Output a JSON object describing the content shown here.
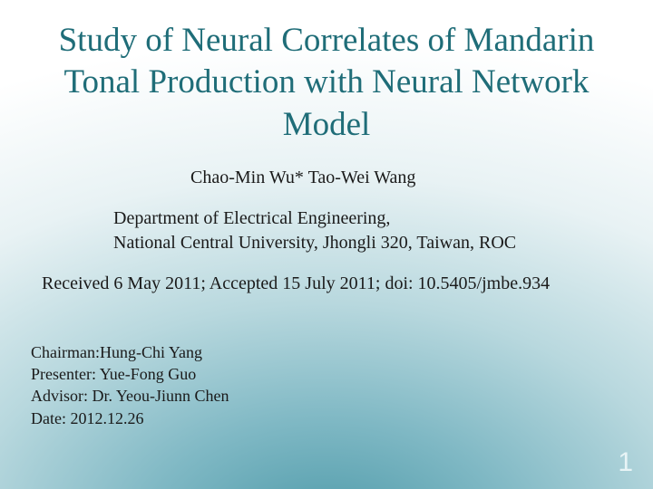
{
  "slide": {
    "background": {
      "gradient_center_color": "#4c99a8",
      "gradient_outer_color": "#ffffff"
    },
    "title": {
      "text": "Study of Neural Correlates of Mandarin Tonal Production with Neural Network Model",
      "color": "#1f6d78",
      "fontsize_pt": 28
    },
    "authors": {
      "text": "Chao-Min Wu* Tao-Wei Wang",
      "fontsize_pt": 15
    },
    "affiliation": {
      "line1": "Department of Electrical Engineering,",
      "line2": "National Central University, Jhongli 320, Taiwan, ROC",
      "fontsize_pt": 15
    },
    "received": {
      "text": "Received 6 May 2011; Accepted 15 July 2011; doi: 10.5405/jmbe.934",
      "fontsize_pt": 15
    },
    "footer": {
      "chairman": "Chairman:Hung-Chi Yang",
      "presenter": "Presenter: Yue-Fong Guo",
      "advisor": "Advisor: Dr. Yeou-Jiunn Chen",
      "date": "Date: 2012.12.26",
      "fontsize_pt": 14
    },
    "page_number": {
      "value": "1",
      "color": "#e8f4f6",
      "fontsize_pt": 22
    }
  }
}
